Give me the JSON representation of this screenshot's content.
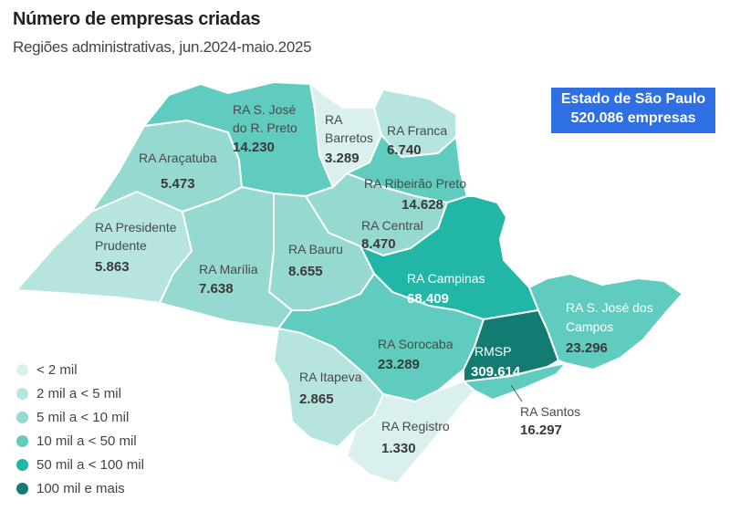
{
  "title": "Número de empresas criadas",
  "subtitle": "Regiões administrativas, jun.2024-maio.2025",
  "total": {
    "line1": "Estado de São Paulo",
    "line2": "520.086 empresas"
  },
  "legend": [
    {
      "label": "< 2 mil",
      "color": "#daf0ee"
    },
    {
      "label": "2 mil a < 5 mil",
      "color": "#b6e5df"
    },
    {
      "label": "5 mil a < 10 mil",
      "color": "#96d9d0"
    },
    {
      "label": "10 mil a < 50 mil",
      "color": "#60cbbf"
    },
    {
      "label": "50 mil a < 100 mil",
      "color": "#21b6a6"
    },
    {
      "label": "100 mil e mais",
      "color": "#137c72"
    }
  ],
  "regions": {
    "sjrp": {
      "label1": "RA S. José",
      "label2": "do R. Preto",
      "value": "14.230"
    },
    "barretos": {
      "label1": "RA",
      "label2": "Barretos",
      "value": "3.289"
    },
    "franca": {
      "label": "RA Franca",
      "value": "6.740"
    },
    "aracatuba": {
      "label": "RA Araçatuba",
      "value": "5.473"
    },
    "ribeirao": {
      "label": "RA Ribeirão Preto",
      "value": "14.628"
    },
    "central": {
      "label": "RA Central",
      "value": "8.470"
    },
    "prudente": {
      "label1": "RA Presidente",
      "label2": "Prudente",
      "value": "5.863"
    },
    "bauru": {
      "label": "RA Bauru",
      "value": "8.655"
    },
    "marilia": {
      "label": "RA Marília",
      "value": "7.638"
    },
    "campinas": {
      "label": "RA Campinas",
      "value": "68.409"
    },
    "sjcampos": {
      "label1": "RA S. José dos",
      "label2": "Campos",
      "value": "23.296"
    },
    "sorocaba": {
      "label": "RA Sorocaba",
      "value": "23.289"
    },
    "rmsp": {
      "label": "RMSP",
      "value": "309.614"
    },
    "itapeva": {
      "label": "RA Itapeva",
      "value": "2.865"
    },
    "santos": {
      "label": "RA Santos",
      "value": "16.297"
    },
    "registro": {
      "label": "RA Registro",
      "value": "1.330"
    }
  }
}
